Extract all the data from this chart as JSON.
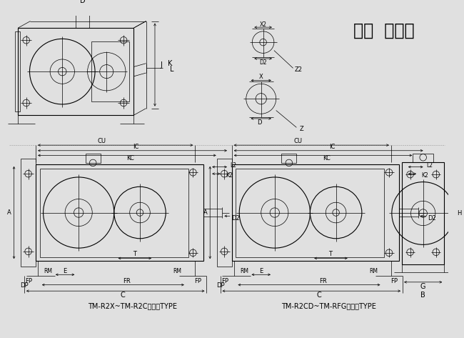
{
  "title": "二段  直交轴",
  "label1": "TM-R2X~TM-R2C适用此TYPE",
  "label2": "TM-R2CD~TM-RFG适用此TYPE",
  "bg_color": "#e0e0e0",
  "line_color": "#000000",
  "text_color": "#000000",
  "font_size_title": 17,
  "font_size_label": 7,
  "font_size_dim": 6
}
